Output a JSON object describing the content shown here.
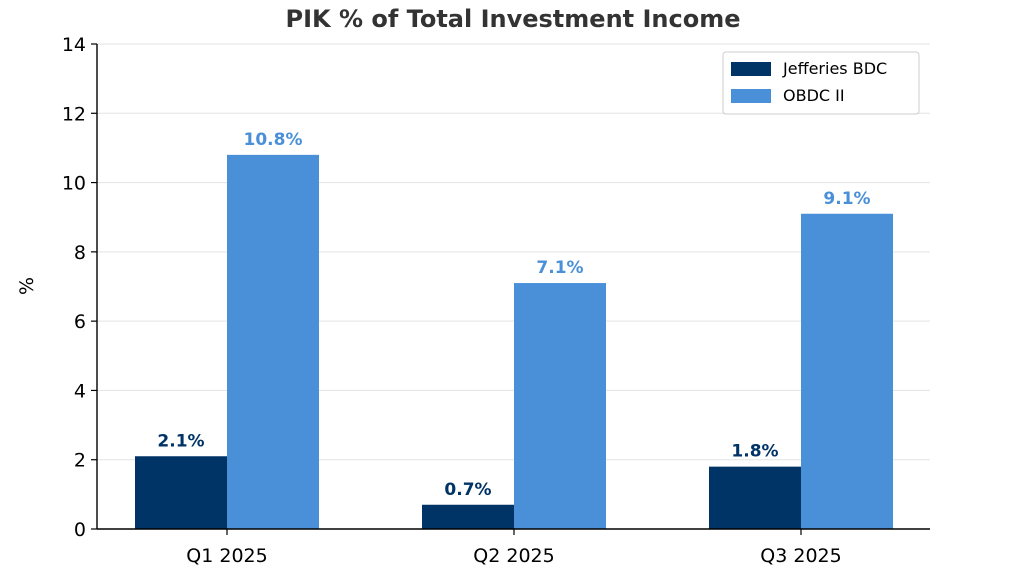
{
  "chart_data": {
    "type": "bar",
    "title": "PIK % of Total Investment Income",
    "xlabel": "",
    "ylabel": "%",
    "ylim": [
      0,
      14
    ],
    "yticks": [
      0,
      2,
      4,
      6,
      8,
      10,
      12,
      14
    ],
    "grid": "horizontal",
    "legend_position": "top-right",
    "categories": [
      "Q1 2025",
      "Q2 2025",
      "Q3 2025"
    ],
    "series": [
      {
        "name": "Jefferies BDC",
        "color": "#003366",
        "values": [
          2.1,
          0.7,
          1.8
        ],
        "labels": [
          "2.1%",
          "0.7%",
          "1.8%"
        ]
      },
      {
        "name": "OBDC II",
        "color": "#4a90d9",
        "values": [
          10.8,
          7.1,
          9.1
        ],
        "labels": [
          "10.8%",
          "7.1%",
          "9.1%"
        ]
      }
    ]
  }
}
